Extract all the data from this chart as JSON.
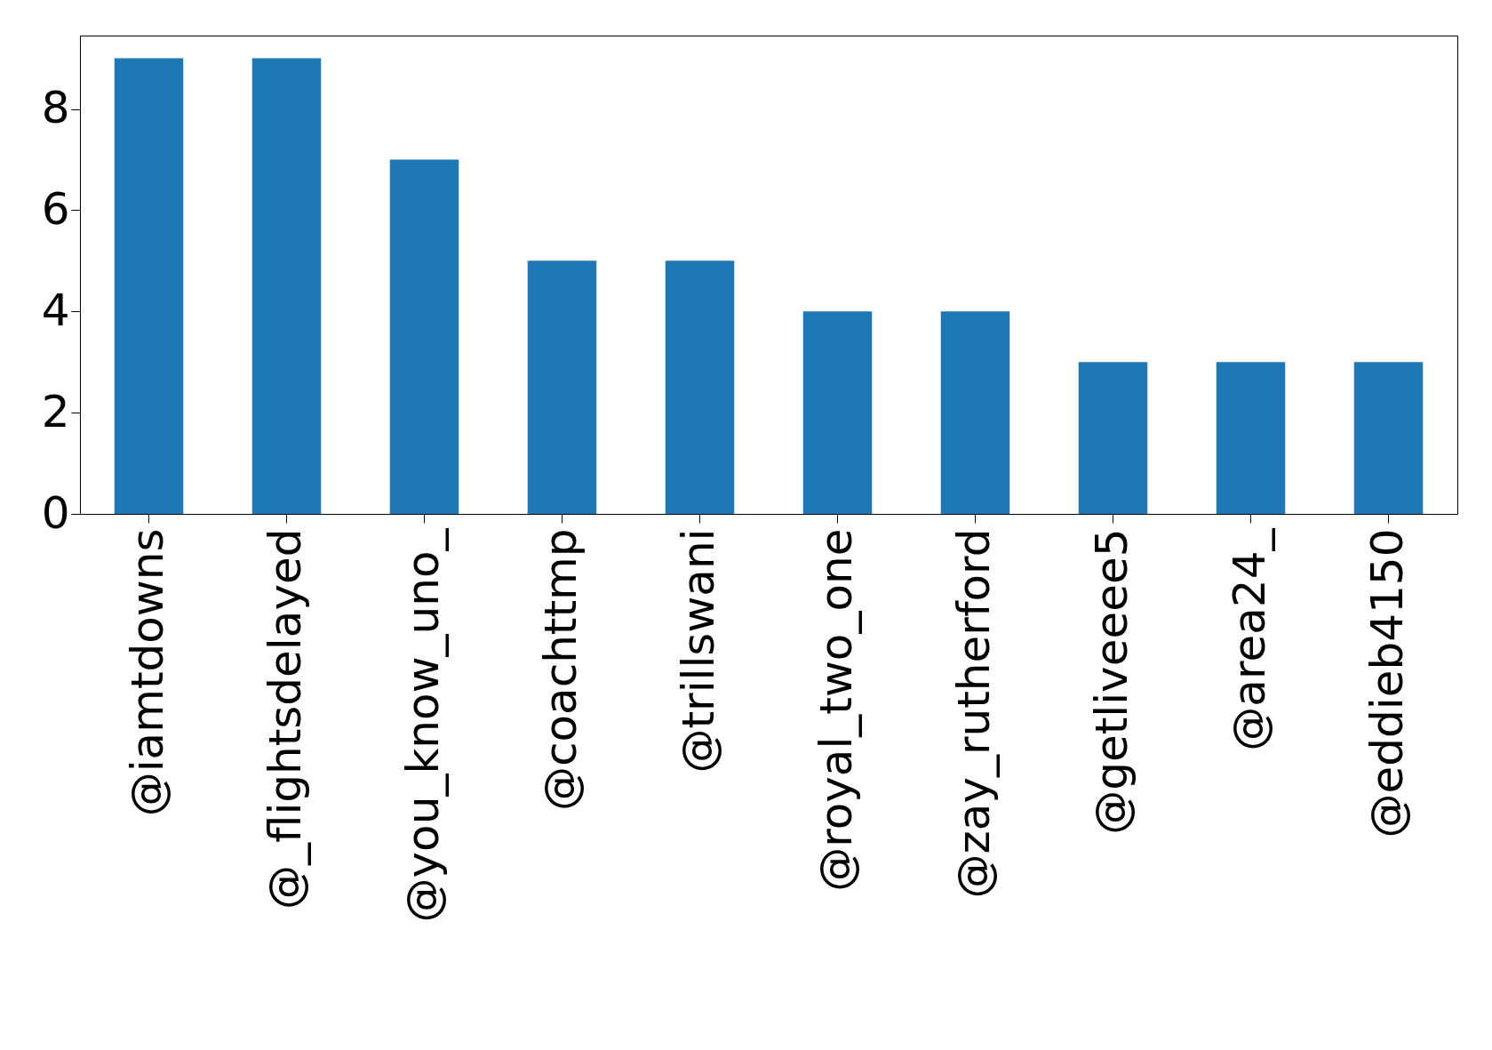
{
  "chart_data": {
    "type": "bar",
    "categories": [
      "@iamtdowns",
      "@_flightsdelayed",
      "@you_know_uno_",
      "@coachttmp",
      "@trillswani",
      "@royal_two_one",
      "@zay_rutherford",
      "@getliveeee5",
      "@area24_",
      "@eddieb4150"
    ],
    "values": [
      9,
      9,
      7,
      5,
      5,
      4,
      4,
      3,
      3,
      3
    ],
    "color": "#1f77b4",
    "ylim": [
      0,
      9.45
    ],
    "yticks": [
      0,
      2,
      4,
      6,
      8
    ],
    "grid": false
  }
}
